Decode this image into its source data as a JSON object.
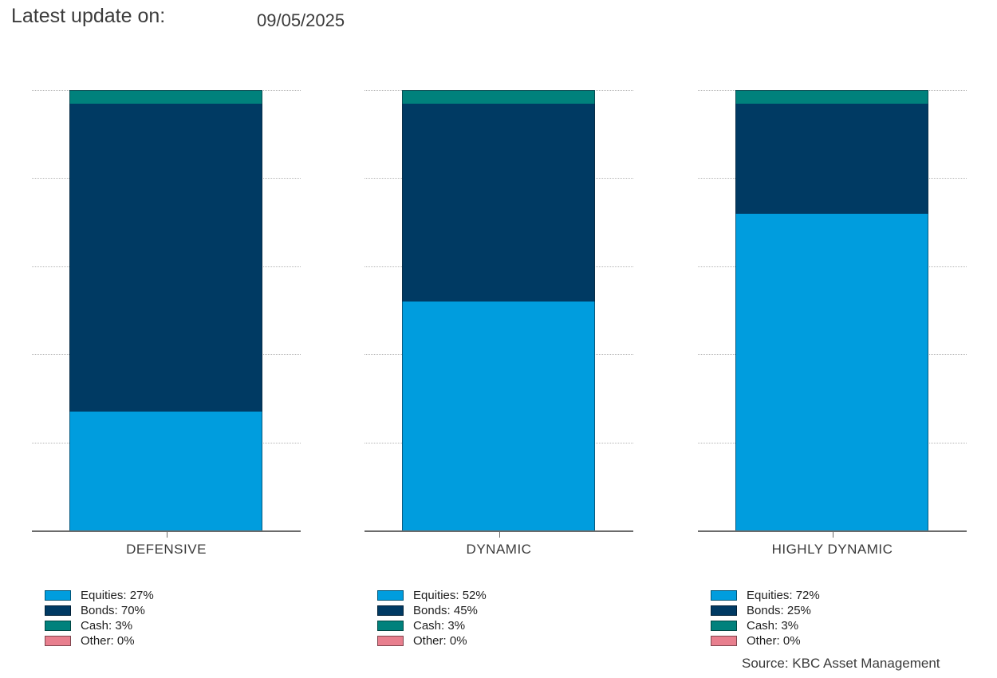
{
  "header": {
    "title": "Latest update on:",
    "date": "09/05/2025"
  },
  "source": "Source: KBC Asset Management",
  "colors": {
    "equities": "#009DDE",
    "bonds": "#003A63",
    "cash": "#00817C",
    "other": "#E87F8E",
    "axis": "#6B6B6B",
    "grid": "#B5B5B5",
    "text": "#3A3A3A"
  },
  "chart_data": {
    "type": "bar",
    "stacked": true,
    "title": "",
    "xlabel": "",
    "ylabel": "",
    "ylim": [
      0,
      100
    ],
    "grid": "horizontal dotted lines every 20%",
    "legend_position": "below each chart",
    "categories": [
      "DEFENSIVE",
      "DYNAMIC",
      "HIGHLY DYNAMIC"
    ],
    "series": [
      {
        "name": "Equities",
        "values": [
          27,
          52,
          72
        ],
        "color": "#009DDE"
      },
      {
        "name": "Bonds",
        "values": [
          70,
          45,
          25
        ],
        "color": "#003A63"
      },
      {
        "name": "Cash",
        "values": [
          3,
          3,
          3
        ],
        "color": "#00817C"
      },
      {
        "name": "Other",
        "values": [
          0,
          0,
          0
        ],
        "color": "#E87F8E"
      }
    ],
    "stack_order_top_to_bottom": [
      "Other",
      "Cash",
      "Bonds",
      "Equities"
    ],
    "legends": [
      {
        "entries": [
          "Equities: 27%",
          "Bonds: 70%",
          "Cash: 3%",
          "Other: 0%"
        ]
      },
      {
        "entries": [
          "Equities: 52%",
          "Bonds: 45%",
          "Cash: 3%",
          "Other: 0%"
        ]
      },
      {
        "entries": [
          "Equities: 72%",
          "Bonds: 25%",
          "Cash: 3%",
          "Other: 0%"
        ]
      }
    ]
  }
}
